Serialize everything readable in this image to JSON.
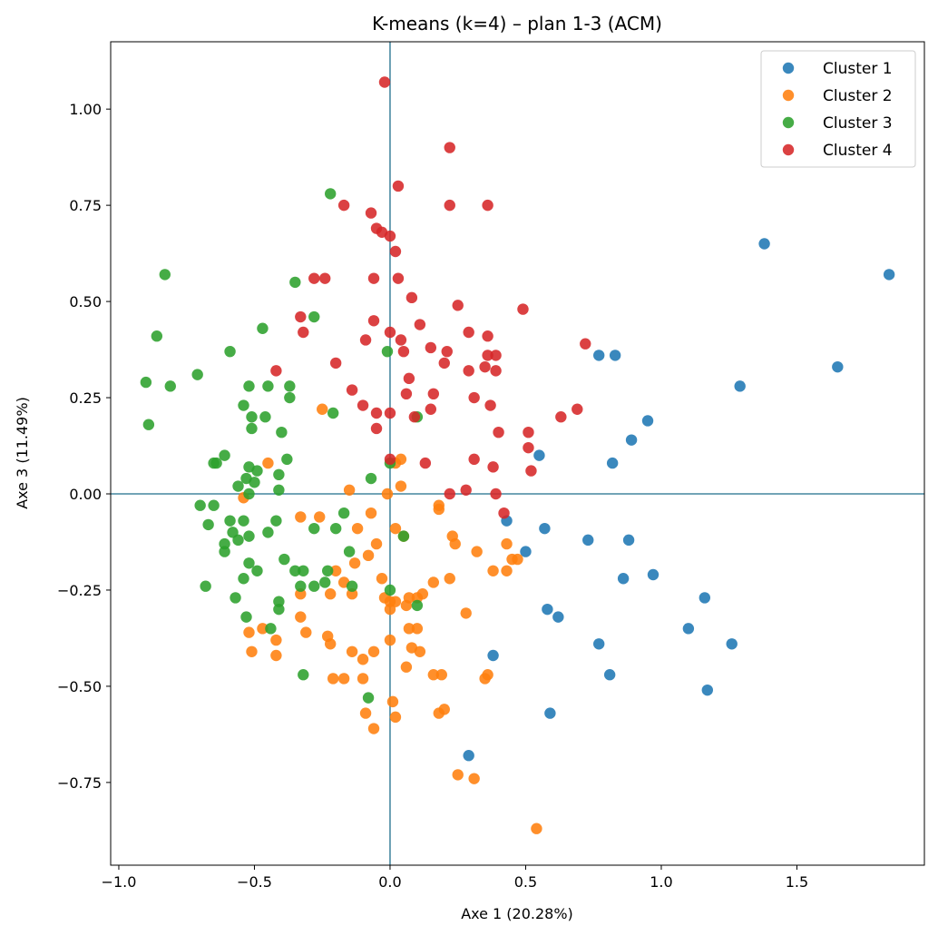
{
  "chart_data": {
    "type": "scatter",
    "title": "K-means (k=4) – plan 1-3 (ACM)",
    "xlabel": "Axe 1 (20.28%)",
    "ylabel": "Axe 3 (11.49%)",
    "xlim": [
      -1.03,
      1.97
    ],
    "ylim": [
      -0.965,
      1.175
    ],
    "xticks": [
      {
        "v": -1.0,
        "label": "−1.0"
      },
      {
        "v": -0.5,
        "label": "−0.5"
      },
      {
        "v": 0.0,
        "label": "0.0"
      },
      {
        "v": 0.5,
        "label": "0.5"
      },
      {
        "v": 1.0,
        "label": "1.0"
      },
      {
        "v": 1.5,
        "label": "1.5"
      }
    ],
    "yticks": [
      {
        "v": -0.75,
        "label": "−0.75"
      },
      {
        "v": -0.5,
        "label": "−0.50"
      },
      {
        "v": -0.25,
        "label": "−0.25"
      },
      {
        "v": 0.0,
        "label": "0.00"
      },
      {
        "v": 0.25,
        "label": "0.25"
      },
      {
        "v": 0.5,
        "label": "0.50"
      },
      {
        "v": 0.75,
        "label": "0.75"
      },
      {
        "v": 1.0,
        "label": "1.00"
      }
    ],
    "reference_lines": {
      "x": 0,
      "y": 0,
      "color": "#1f6e8c"
    },
    "legend_position": "top-right",
    "grid": false,
    "series": [
      {
        "name": "Cluster 1",
        "color": "#1f77b4",
        "points": [
          [
            1.84,
            0.57
          ],
          [
            1.38,
            0.65
          ],
          [
            1.65,
            0.33
          ],
          [
            1.29,
            0.28
          ],
          [
            0.95,
            0.19
          ],
          [
            0.89,
            0.14
          ],
          [
            0.82,
            0.08
          ],
          [
            0.77,
            0.36
          ],
          [
            0.83,
            0.36
          ],
          [
            0.55,
            0.1
          ],
          [
            0.43,
            -0.07
          ],
          [
            0.57,
            -0.09
          ],
          [
            0.5,
            -0.15
          ],
          [
            0.73,
            -0.12
          ],
          [
            0.88,
            -0.12
          ],
          [
            0.86,
            -0.22
          ],
          [
            0.97,
            -0.21
          ],
          [
            1.16,
            -0.27
          ],
          [
            0.58,
            -0.3
          ],
          [
            0.62,
            -0.32
          ],
          [
            1.1,
            -0.35
          ],
          [
            1.26,
            -0.39
          ],
          [
            0.77,
            -0.39
          ],
          [
            0.38,
            -0.42
          ],
          [
            0.81,
            -0.47
          ],
          [
            1.17,
            -0.51
          ],
          [
            0.59,
            -0.57
          ],
          [
            0.29,
            -0.68
          ]
        ]
      },
      {
        "name": "Cluster 2",
        "color": "#ff7f0e",
        "points": [
          [
            -0.25,
            0.22
          ],
          [
            -0.45,
            0.08
          ],
          [
            -0.54,
            -0.01
          ],
          [
            -0.15,
            0.01
          ],
          [
            0.02,
            0.08
          ],
          [
            0.04,
            0.09
          ],
          [
            0.04,
            0.02
          ],
          [
            -0.01,
            0.0
          ],
          [
            0.18,
            -0.03
          ],
          [
            0.18,
            -0.04
          ],
          [
            -0.33,
            -0.06
          ],
          [
            -0.26,
            -0.06
          ],
          [
            -0.12,
            -0.09
          ],
          [
            -0.07,
            -0.05
          ],
          [
            0.02,
            -0.09
          ],
          [
            0.05,
            -0.11
          ],
          [
            -0.05,
            -0.13
          ],
          [
            0.23,
            -0.11
          ],
          [
            0.24,
            -0.13
          ],
          [
            0.32,
            -0.15
          ],
          [
            0.43,
            -0.13
          ],
          [
            0.45,
            -0.17
          ],
          [
            0.47,
            -0.17
          ],
          [
            -0.08,
            -0.16
          ],
          [
            -0.13,
            -0.18
          ],
          [
            -0.2,
            -0.2
          ],
          [
            0.38,
            -0.2
          ],
          [
            0.43,
            -0.2
          ],
          [
            -0.03,
            -0.22
          ],
          [
            0.22,
            -0.22
          ],
          [
            0.16,
            -0.23
          ],
          [
            -0.17,
            -0.23
          ],
          [
            -0.14,
            -0.26
          ],
          [
            -0.33,
            -0.26
          ],
          [
            -0.22,
            -0.26
          ],
          [
            -0.02,
            -0.27
          ],
          [
            0.0,
            -0.28
          ],
          [
            0.02,
            -0.28
          ],
          [
            0.07,
            -0.27
          ],
          [
            0.1,
            -0.27
          ],
          [
            0.12,
            -0.26
          ],
          [
            0.0,
            -0.3
          ],
          [
            0.06,
            -0.29
          ],
          [
            0.28,
            -0.31
          ],
          [
            -0.33,
            -0.32
          ],
          [
            -0.47,
            -0.35
          ],
          [
            -0.52,
            -0.36
          ],
          [
            -0.31,
            -0.36
          ],
          [
            0.07,
            -0.35
          ],
          [
            0.1,
            -0.35
          ],
          [
            -0.23,
            -0.37
          ],
          [
            -0.42,
            -0.38
          ],
          [
            -0.22,
            -0.39
          ],
          [
            0.0,
            -0.38
          ],
          [
            -0.51,
            -0.41
          ],
          [
            -0.14,
            -0.41
          ],
          [
            -0.06,
            -0.41
          ],
          [
            0.08,
            -0.4
          ],
          [
            0.11,
            -0.41
          ],
          [
            -0.42,
            -0.42
          ],
          [
            -0.1,
            -0.43
          ],
          [
            0.06,
            -0.45
          ],
          [
            0.16,
            -0.47
          ],
          [
            0.19,
            -0.47
          ],
          [
            0.35,
            -0.48
          ],
          [
            0.36,
            -0.47
          ],
          [
            -0.21,
            -0.48
          ],
          [
            -0.17,
            -0.48
          ],
          [
            -0.1,
            -0.48
          ],
          [
            0.01,
            -0.54
          ],
          [
            0.18,
            -0.57
          ],
          [
            0.2,
            -0.56
          ],
          [
            -0.09,
            -0.57
          ],
          [
            0.02,
            -0.58
          ],
          [
            -0.06,
            -0.61
          ],
          [
            0.25,
            -0.73
          ],
          [
            0.31,
            -0.74
          ],
          [
            0.54,
            -0.87
          ]
        ]
      },
      {
        "name": "Cluster 3",
        "color": "#2ca02c",
        "points": [
          [
            -0.22,
            0.78
          ],
          [
            -0.83,
            0.57
          ],
          [
            -0.35,
            0.55
          ],
          [
            -0.28,
            0.46
          ],
          [
            -0.47,
            0.43
          ],
          [
            -0.86,
            0.41
          ],
          [
            -0.01,
            0.37
          ],
          [
            -0.59,
            0.37
          ],
          [
            -0.9,
            0.29
          ],
          [
            -0.71,
            0.31
          ],
          [
            -0.81,
            0.28
          ],
          [
            -0.52,
            0.28
          ],
          [
            -0.45,
            0.28
          ],
          [
            -0.37,
            0.28
          ],
          [
            -0.37,
            0.25
          ],
          [
            -0.54,
            0.23
          ],
          [
            -0.21,
            0.21
          ],
          [
            -0.51,
            0.2
          ],
          [
            -0.46,
            0.2
          ],
          [
            0.1,
            0.2
          ],
          [
            -0.89,
            0.18
          ],
          [
            -0.51,
            0.17
          ],
          [
            -0.4,
            0.16
          ],
          [
            -0.61,
            0.1
          ],
          [
            -0.38,
            0.09
          ],
          [
            -0.65,
            0.08
          ],
          [
            -0.64,
            0.08
          ],
          [
            -0.52,
            0.07
          ],
          [
            -0.49,
            0.06
          ],
          [
            -0.41,
            0.05
          ],
          [
            -0.53,
            0.04
          ],
          [
            -0.07,
            0.04
          ],
          [
            -0.5,
            0.03
          ],
          [
            -0.56,
            0.02
          ],
          [
            -0.41,
            0.01
          ],
          [
            -0.52,
            0.0
          ],
          [
            0.0,
            0.08
          ],
          [
            -0.7,
            -0.03
          ],
          [
            -0.65,
            -0.03
          ],
          [
            -0.42,
            -0.07
          ],
          [
            -0.59,
            -0.07
          ],
          [
            -0.54,
            -0.07
          ],
          [
            -0.67,
            -0.08
          ],
          [
            -0.17,
            -0.05
          ],
          [
            -0.28,
            -0.09
          ],
          [
            -0.2,
            -0.09
          ],
          [
            -0.58,
            -0.1
          ],
          [
            -0.45,
            -0.1
          ],
          [
            -0.52,
            -0.11
          ],
          [
            0.05,
            -0.11
          ],
          [
            -0.56,
            -0.12
          ],
          [
            -0.61,
            -0.13
          ],
          [
            -0.61,
            -0.15
          ],
          [
            -0.15,
            -0.15
          ],
          [
            -0.39,
            -0.17
          ],
          [
            -0.52,
            -0.18
          ],
          [
            -0.35,
            -0.2
          ],
          [
            -0.32,
            -0.2
          ],
          [
            -0.23,
            -0.2
          ],
          [
            -0.49,
            -0.2
          ],
          [
            -0.54,
            -0.22
          ],
          [
            -0.24,
            -0.23
          ],
          [
            -0.14,
            -0.24
          ],
          [
            -0.28,
            -0.24
          ],
          [
            -0.33,
            -0.24
          ],
          [
            -0.68,
            -0.24
          ],
          [
            0.0,
            -0.25
          ],
          [
            -0.57,
            -0.27
          ],
          [
            -0.41,
            -0.28
          ],
          [
            0.1,
            -0.29
          ],
          [
            -0.41,
            -0.3
          ],
          [
            -0.53,
            -0.32
          ],
          [
            -0.44,
            -0.35
          ],
          [
            -0.32,
            -0.47
          ],
          [
            -0.08,
            -0.53
          ]
        ]
      },
      {
        "name": "Cluster 4",
        "color": "#d62728",
        "points": [
          [
            -0.02,
            1.07
          ],
          [
            0.22,
            0.9
          ],
          [
            0.03,
            0.8
          ],
          [
            -0.17,
            0.75
          ],
          [
            0.22,
            0.75
          ],
          [
            0.36,
            0.75
          ],
          [
            -0.07,
            0.73
          ],
          [
            -0.05,
            0.69
          ],
          [
            -0.03,
            0.68
          ],
          [
            0.0,
            0.67
          ],
          [
            0.02,
            0.63
          ],
          [
            -0.28,
            0.56
          ],
          [
            -0.24,
            0.56
          ],
          [
            -0.06,
            0.56
          ],
          [
            0.03,
            0.56
          ],
          [
            0.08,
            0.51
          ],
          [
            0.25,
            0.49
          ],
          [
            0.49,
            0.48
          ],
          [
            -0.33,
            0.46
          ],
          [
            -0.06,
            0.45
          ],
          [
            0.11,
            0.44
          ],
          [
            -0.32,
            0.42
          ],
          [
            0.0,
            0.42
          ],
          [
            0.29,
            0.42
          ],
          [
            0.36,
            0.41
          ],
          [
            -0.09,
            0.4
          ],
          [
            0.04,
            0.4
          ],
          [
            0.72,
            0.39
          ],
          [
            0.05,
            0.37
          ],
          [
            0.15,
            0.38
          ],
          [
            0.21,
            0.37
          ],
          [
            0.36,
            0.36
          ],
          [
            0.39,
            0.36
          ],
          [
            0.2,
            0.34
          ],
          [
            -0.2,
            0.34
          ],
          [
            0.35,
            0.33
          ],
          [
            0.29,
            0.32
          ],
          [
            0.39,
            0.32
          ],
          [
            -0.42,
            0.32
          ],
          [
            0.07,
            0.3
          ],
          [
            -0.14,
            0.27
          ],
          [
            0.06,
            0.26
          ],
          [
            0.16,
            0.26
          ],
          [
            0.31,
            0.25
          ],
          [
            -0.1,
            0.23
          ],
          [
            0.37,
            0.23
          ],
          [
            0.15,
            0.22
          ],
          [
            0.69,
            0.22
          ],
          [
            -0.05,
            0.21
          ],
          [
            0.0,
            0.21
          ],
          [
            0.09,
            0.2
          ],
          [
            0.63,
            0.2
          ],
          [
            -0.05,
            0.17
          ],
          [
            0.4,
            0.16
          ],
          [
            0.51,
            0.16
          ],
          [
            0.51,
            0.12
          ],
          [
            0.0,
            0.09
          ],
          [
            0.13,
            0.08
          ],
          [
            0.31,
            0.09
          ],
          [
            0.38,
            0.07
          ],
          [
            0.52,
            0.06
          ],
          [
            0.28,
            0.01
          ],
          [
            0.22,
            0.0
          ],
          [
            0.39,
            0.0
          ],
          [
            0.42,
            -0.05
          ]
        ]
      }
    ]
  }
}
